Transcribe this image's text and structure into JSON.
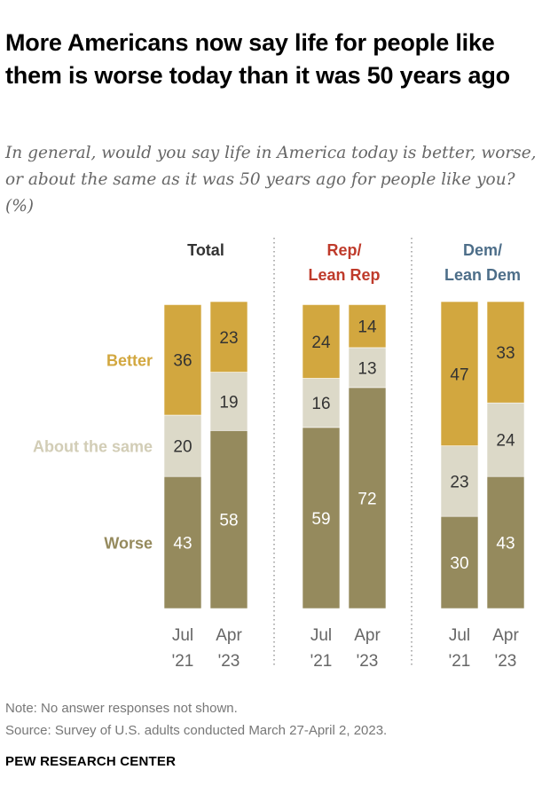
{
  "title": "More Americans now say life for people like them is worse today than it was 50 years ago",
  "subtitle": "In general, would you say life in America today is better, worse, or about the same as it was 50 years ago for people like you? (%)",
  "note": "Note: No answer responses not shown.",
  "source": "Source: Survey of U.S. adults conducted March 27-April 2, 2023.",
  "brand": "PEW RESEARCH CENTER",
  "chart_data": {
    "type": "bar",
    "stacked": true,
    "categories": [
      "Jul '21",
      "Apr '23"
    ],
    "category_lines": [
      [
        "Jul",
        "'21"
      ],
      [
        "Apr",
        "'23"
      ]
    ],
    "groups": [
      {
        "name": "Total",
        "name_lines": [
          "Total"
        ],
        "color": "#333333",
        "series": {
          "Better": [
            36,
            23
          ],
          "About the same": [
            20,
            19
          ],
          "Worse": [
            43,
            58
          ]
        }
      },
      {
        "name": "Rep/ Lean Rep",
        "name_lines": [
          "Rep/",
          "Lean Rep"
        ],
        "color": "#BF3B2B",
        "series": {
          "Better": [
            24,
            14
          ],
          "About the same": [
            16,
            13
          ],
          "Worse": [
            59,
            72
          ]
        }
      },
      {
        "name": "Dem/ Lean Dem",
        "name_lines": [
          "Dem/",
          "Lean Dem"
        ],
        "color": "#4D6E89",
        "series": {
          "Better": [
            47,
            33
          ],
          "About the same": [
            23,
            24
          ],
          "Worse": [
            30,
            43
          ]
        }
      }
    ],
    "series": [
      {
        "name": "Better",
        "color": "#D2A73F",
        "label_color": "#D2A73F"
      },
      {
        "name": "About the same",
        "color": "#DCD9C8",
        "label_color": "#D2CDB6"
      },
      {
        "name": "Worse",
        "color": "#958A5D",
        "label_color": "#958A5D"
      }
    ],
    "ylim": [
      0,
      100
    ],
    "grid": false
  }
}
